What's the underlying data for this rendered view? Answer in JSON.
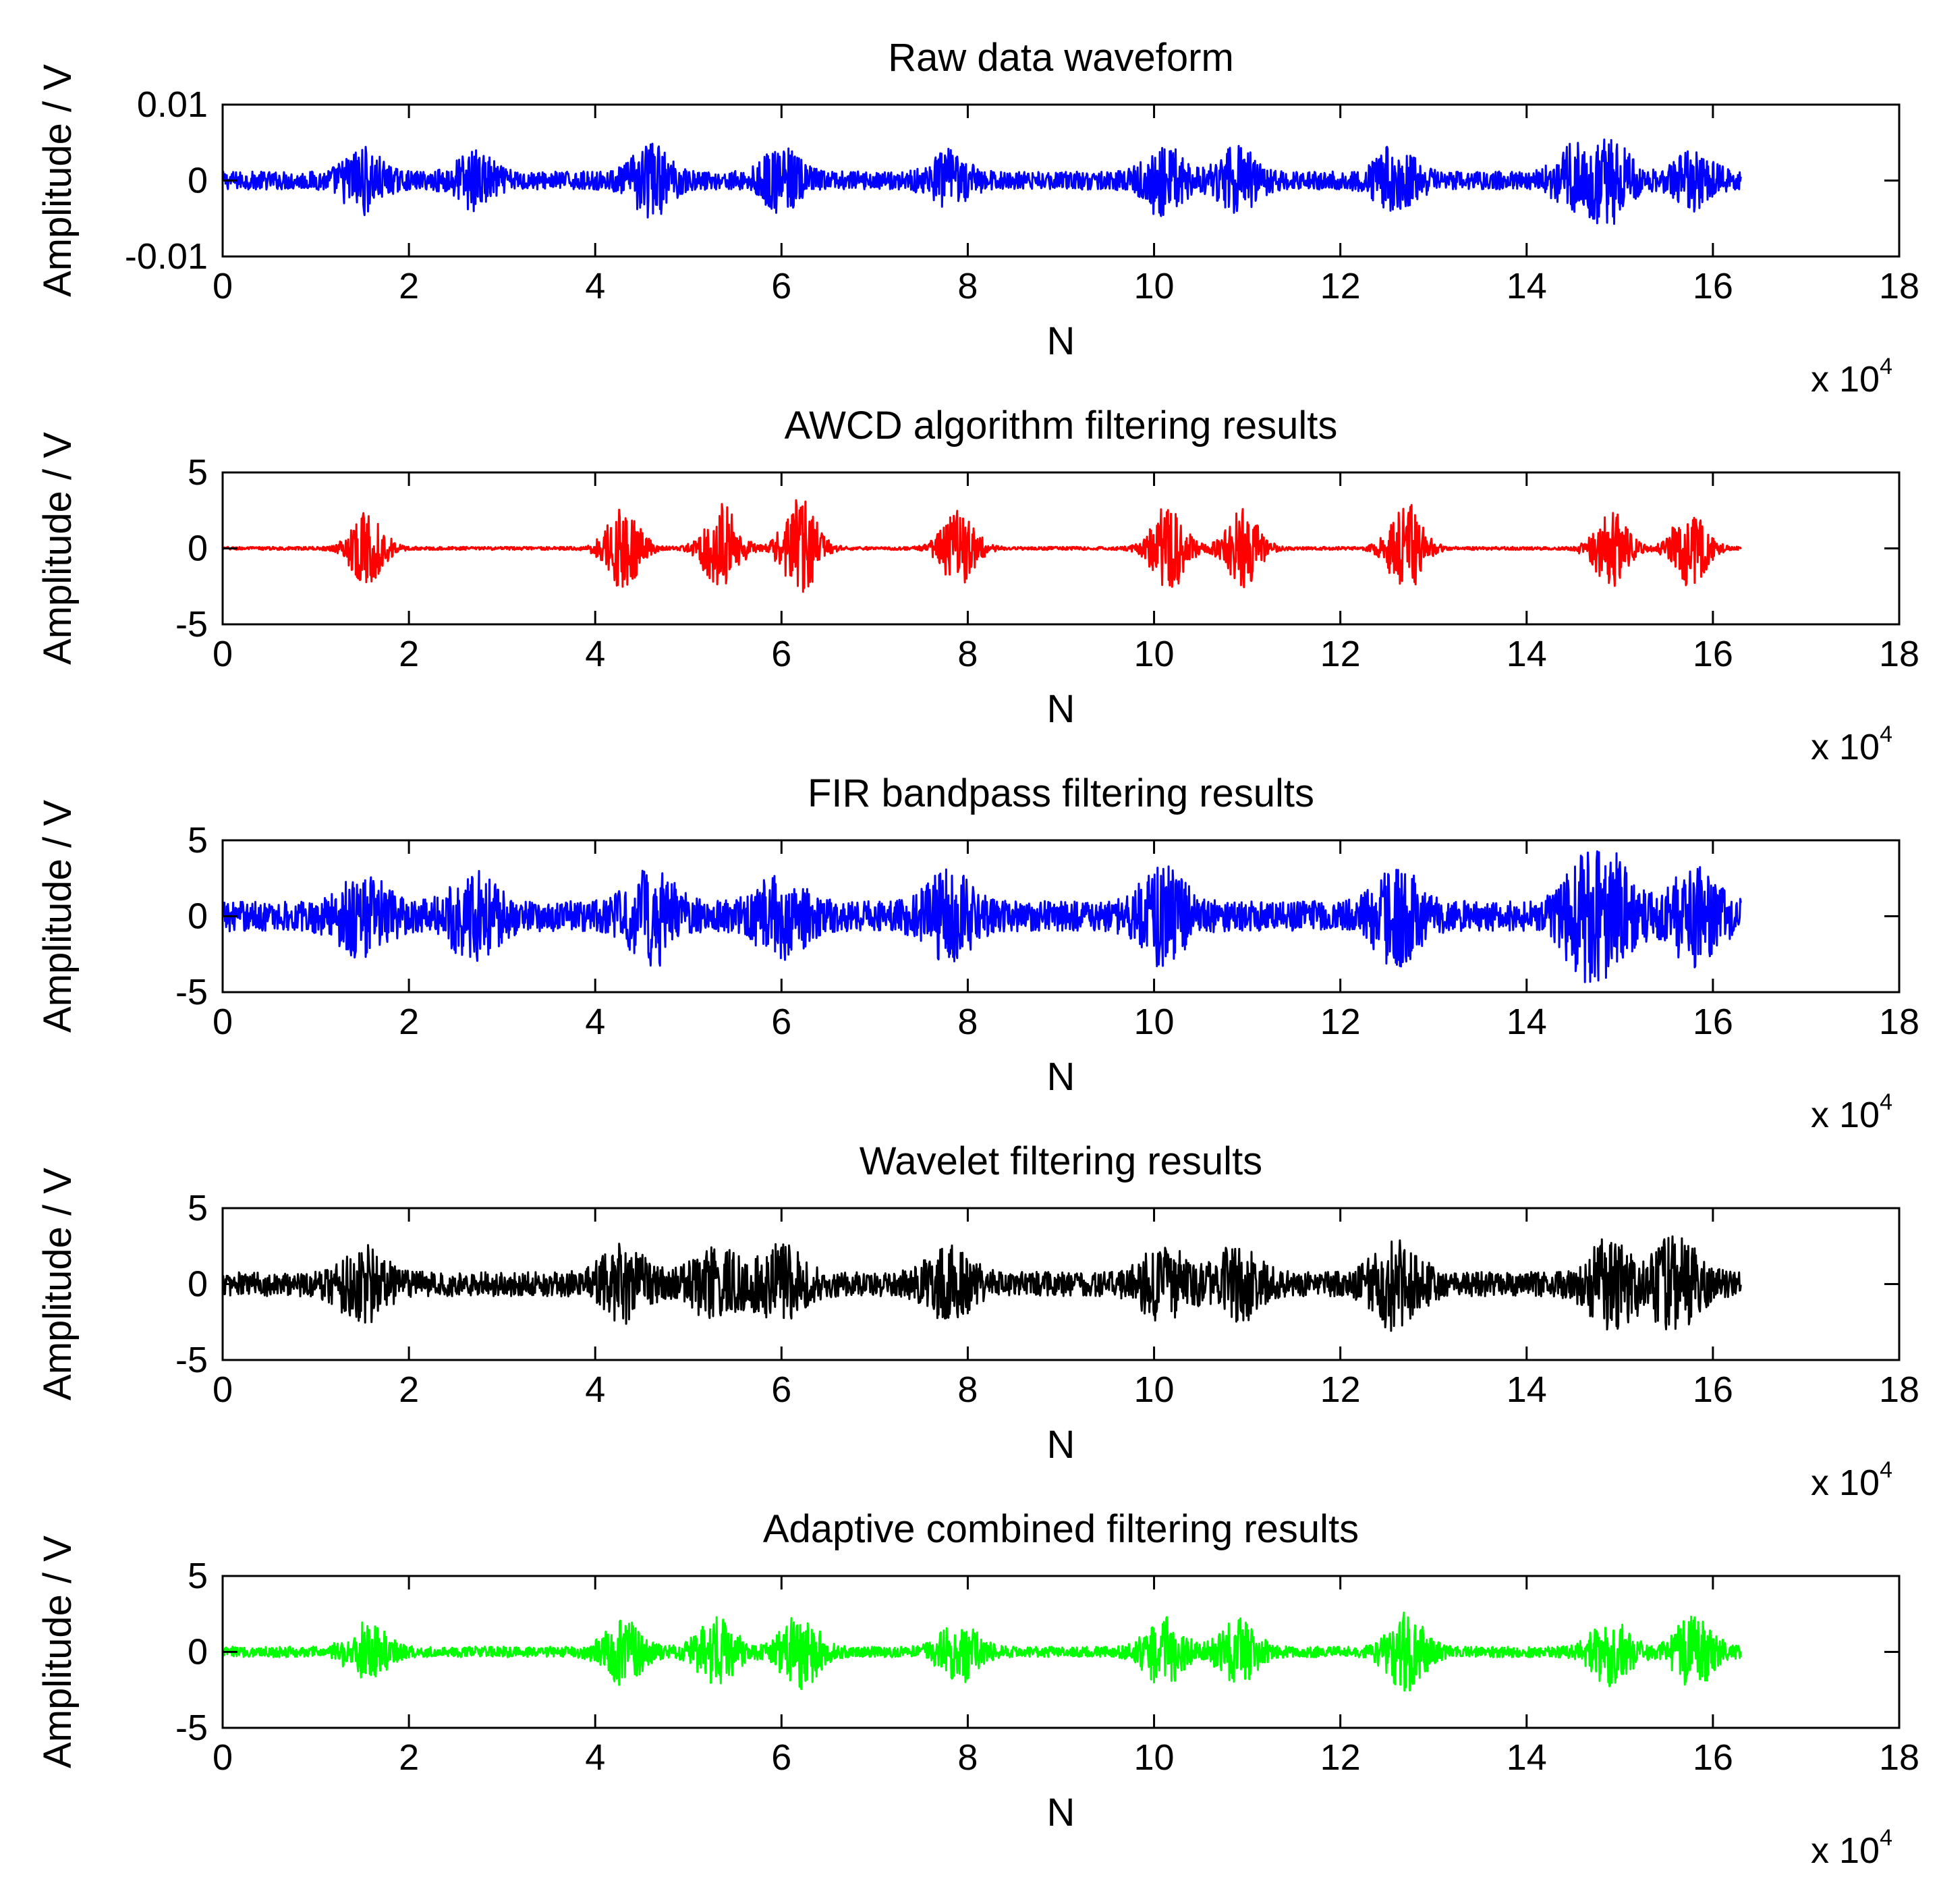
{
  "chart_data": [
    {
      "type": "line",
      "title": "Raw data waveform",
      "xlabel": "N",
      "ylabel": "Amplitude / V",
      "x_multiplier_label": "x 10",
      "x_multiplier_exponent": "4",
      "xlim": [
        0,
        18
      ],
      "ylim": [
        -0.01,
        0.01
      ],
      "xticks": [
        "0",
        "2",
        "4",
        "6",
        "8",
        "10",
        "12",
        "14",
        "16",
        "18"
      ],
      "yticks": [
        "0.01",
        "0",
        "-0.01"
      ],
      "ytick_values": [
        0.01,
        0,
        -0.01
      ],
      "color": "#0000ff",
      "signal": {
        "x_start": 0,
        "x_end": 16.3,
        "noise_amplitude": 0.0012,
        "burst_centers": [
          1.5,
          2.7,
          4.6,
          6.0,
          7.8,
          10.1,
          10.9,
          12.6,
          14.5,
          14.9,
          15.8
        ],
        "burst_amplitudes": [
          0.0035,
          0.003,
          0.004,
          0.0035,
          0.003,
          0.004,
          0.0035,
          0.004,
          0.0035,
          0.0045,
          0.003
        ],
        "burst_width": 0.25
      }
    },
    {
      "type": "line",
      "title": "AWCD algorithm filtering results",
      "xlabel": "N",
      "ylabel": "Amplitude / V",
      "x_multiplier_label": "x 10",
      "x_multiplier_exponent": "4",
      "xlim": [
        0,
        18
      ],
      "ylim": [
        -5,
        5
      ],
      "xticks": [
        "0",
        "2",
        "4",
        "6",
        "8",
        "10",
        "12",
        "14",
        "16",
        "18"
      ],
      "yticks": [
        "5",
        "0",
        "-5"
      ],
      "ytick_values": [
        5,
        0,
        -5
      ],
      "color": "#ff0000",
      "signal": {
        "x_start": 0,
        "x_end": 16.3,
        "noise_amplitude": 0.1,
        "burst_centers": [
          1.55,
          4.3,
          5.35,
          6.2,
          7.9,
          10.15,
          10.95,
          12.7,
          14.9,
          15.75
        ],
        "burst_amplitudes": [
          2.3,
          2.6,
          2.9,
          3.4,
          2.5,
          3.0,
          2.5,
          3.0,
          2.5,
          2.6
        ],
        "burst_width": 0.22
      }
    },
    {
      "type": "line",
      "title": "FIR bandpass filtering results",
      "xlabel": "N",
      "ylabel": "Amplitude / V",
      "x_multiplier_label": "x 10",
      "x_multiplier_exponent": "4",
      "xlim": [
        0,
        18
      ],
      "ylim": [
        -5,
        5
      ],
      "xticks": [
        "0",
        "2",
        "4",
        "6",
        "8",
        "10",
        "12",
        "14",
        "16",
        "18"
      ],
      "yticks": [
        "5",
        "0",
        "-5"
      ],
      "ytick_values": [
        5,
        0,
        -5
      ],
      "color": "#0000ff",
      "signal": {
        "x_start": 0,
        "x_end": 16.3,
        "noise_amplitude": 1.0,
        "burst_centers": [
          1.5,
          2.7,
          4.6,
          6.0,
          7.8,
          10.1,
          12.6,
          14.6,
          14.9,
          15.8
        ],
        "burst_amplitudes": [
          2.2,
          2.2,
          2.5,
          2.2,
          2.2,
          2.5,
          2.5,
          2.4,
          2.8,
          2.5
        ],
        "burst_width": 0.3
      }
    },
    {
      "type": "line",
      "title": "Wavelet filtering results",
      "xlabel": "N",
      "ylabel": "Amplitude / V",
      "x_multiplier_label": "x 10",
      "x_multiplier_exponent": "4",
      "xlim": [
        0,
        18
      ],
      "ylim": [
        -5,
        5
      ],
      "xticks": [
        "0",
        "2",
        "4",
        "6",
        "8",
        "10",
        "12",
        "14",
        "16",
        "18"
      ],
      "yticks": [
        "5",
        "0",
        "-5"
      ],
      "ytick_values": [
        5,
        0,
        -5
      ],
      "color": "#000000",
      "signal": {
        "x_start": 0,
        "x_end": 16.3,
        "noise_amplitude": 0.8,
        "burst_centers": [
          1.5,
          4.3,
          5.3,
          6.0,
          7.8,
          10.1,
          10.9,
          12.6,
          14.9,
          15.6
        ],
        "burst_amplitudes": [
          1.9,
          1.9,
          1.9,
          2.0,
          1.8,
          2.0,
          1.9,
          2.4,
          2.4,
          2.6
        ],
        "burst_width": 0.3
      }
    },
    {
      "type": "line",
      "title": "Adaptive combined filtering results",
      "xlabel": "N",
      "ylabel": "Amplitude / V",
      "x_multiplier_label": "x 10",
      "x_multiplier_exponent": "4",
      "xlim": [
        0,
        18
      ],
      "ylim": [
        -5,
        5
      ],
      "xticks": [
        "0",
        "2",
        "4",
        "6",
        "8",
        "10",
        "12",
        "14",
        "16",
        "18"
      ],
      "yticks": [
        "5",
        "0",
        "-5"
      ],
      "ytick_values": [
        5,
        0,
        -5
      ],
      "color": "#00ff00",
      "signal": {
        "x_start": 0,
        "x_end": 16.3,
        "noise_amplitude": 0.35,
        "burst_centers": [
          1.55,
          4.3,
          5.3,
          6.2,
          7.9,
          10.1,
          10.9,
          12.7,
          14.9,
          15.8
        ],
        "burst_amplitudes": [
          1.8,
          1.9,
          2.0,
          2.2,
          1.8,
          2.0,
          1.9,
          2.3,
          2.0,
          2.2
        ],
        "burst_width": 0.25
      }
    }
  ]
}
